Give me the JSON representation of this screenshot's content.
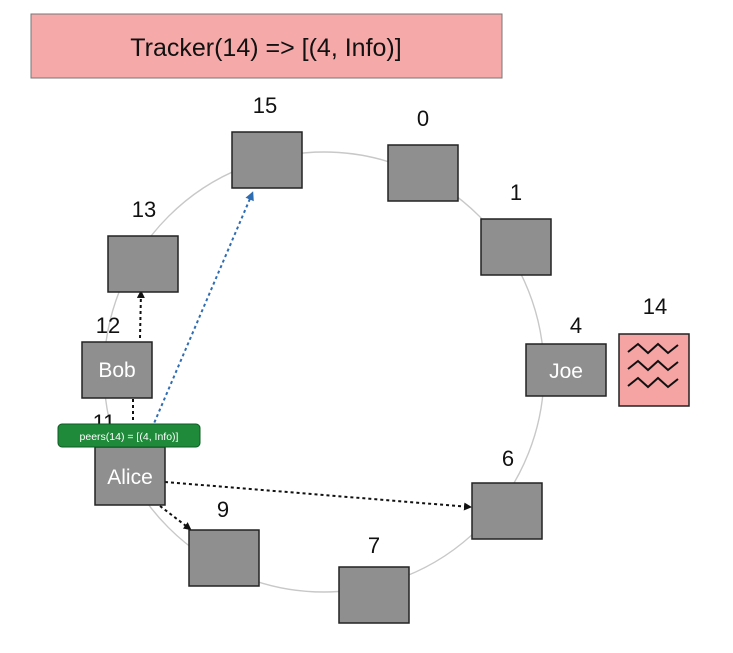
{
  "header": {
    "title": "Tracker(14) => [(4, Info)]"
  },
  "nodes": [
    {
      "key": "n15",
      "id": "15",
      "name": ""
    },
    {
      "key": "n0",
      "id": "0",
      "name": ""
    },
    {
      "key": "n1",
      "id": "1",
      "name": ""
    },
    {
      "key": "n13",
      "id": "13",
      "name": ""
    },
    {
      "key": "n12",
      "id": "12",
      "name": "Bob"
    },
    {
      "key": "n4",
      "id": "4",
      "name": "Joe"
    },
    {
      "key": "n11",
      "id": "11",
      "name": "Alice"
    },
    {
      "key": "n6",
      "id": "6",
      "name": ""
    },
    {
      "key": "n9",
      "id": "9",
      "name": ""
    },
    {
      "key": "n7",
      "id": "7",
      "name": ""
    }
  ],
  "file": {
    "id": "14"
  },
  "callout": {
    "text": "peers(14) = [(4, Info)]"
  },
  "colors": {
    "header_fill": "#f5a9a9",
    "node_fill": "#8f8f8f",
    "file_fill": "#f5a3a3",
    "callout_fill": "#1e8a3a",
    "blue_arrow": "#2f6db3",
    "ring": "#c8c8c8"
  }
}
